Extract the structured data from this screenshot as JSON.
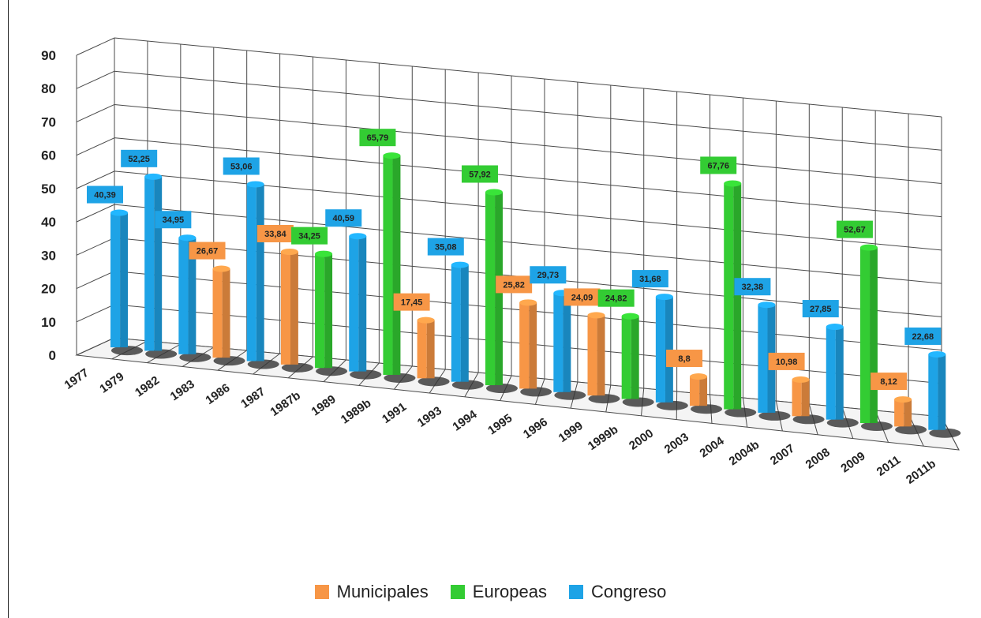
{
  "chart_data": {
    "type": "bar",
    "title": "",
    "xlabel": "",
    "ylabel": "",
    "ylim": [
      0,
      90
    ],
    "yticks": [
      0,
      10,
      20,
      30,
      40,
      50,
      60,
      70,
      80,
      90
    ],
    "grid": true,
    "legend_position": "bottom",
    "categories": [
      "1977",
      "1979",
      "1982",
      "1983",
      "1986",
      "1987",
      "1987b",
      "1989",
      "1989b",
      "1991",
      "1993",
      "1994",
      "1995",
      "1996",
      "1999",
      "1999b",
      "2000",
      "2003",
      "2004",
      "2004b",
      "2007",
      "2008",
      "2009",
      "2011",
      "2011b"
    ],
    "series": [
      {
        "name": "Municipales",
        "color": "#f79646",
        "points": [
          {
            "x": "1983",
            "y": 26.67,
            "label": "26,67"
          },
          {
            "x": "1987",
            "y": 33.84,
            "label": "33,84"
          },
          {
            "x": "1991",
            "y": 17.45,
            "label": "17,45"
          },
          {
            "x": "1995",
            "y": 25.82,
            "label": "25,82"
          },
          {
            "x": "1999",
            "y": 24.09,
            "label": "24,09"
          },
          {
            "x": "2003",
            "y": 8.8,
            "label": "8,8"
          },
          {
            "x": "2007",
            "y": 10.98,
            "label": "10,98"
          },
          {
            "x": "2011",
            "y": 8.12,
            "label": "8,12"
          }
        ]
      },
      {
        "name": "Europeas",
        "color": "#33cc33",
        "points": [
          {
            "x": "1987b",
            "y": 34.25,
            "label": "34,25"
          },
          {
            "x": "1989b",
            "y": 65.79,
            "label": "65,79"
          },
          {
            "x": "1994",
            "y": 57.92,
            "label": "57,92"
          },
          {
            "x": "1999b",
            "y": 24.82,
            "label": "24,82"
          },
          {
            "x": "2004",
            "y": 67.76,
            "label": "67,76"
          },
          {
            "x": "2009",
            "y": 52.67,
            "label": "52,67"
          }
        ]
      },
      {
        "name": "Congreso",
        "color": "#1ea3e6",
        "points": [
          {
            "x": "1977",
            "y": 40.39,
            "label": "40,39"
          },
          {
            "x": "1979",
            "y": 52.25,
            "label": "52,25"
          },
          {
            "x": "1982",
            "y": 34.95,
            "label": "34,95"
          },
          {
            "x": "1986",
            "y": 53.06,
            "label": "53,06"
          },
          {
            "x": "1989",
            "y": 40.59,
            "label": "40,59"
          },
          {
            "x": "1993",
            "y": 35.08,
            "label": "35,08"
          },
          {
            "x": "1996",
            "y": 29.73,
            "label": "29,73"
          },
          {
            "x": "2000",
            "y": 31.68,
            "label": "31,68"
          },
          {
            "x": "2004b",
            "y": 32.38,
            "label": "32,38"
          },
          {
            "x": "2008",
            "y": 27.85,
            "label": "27,85"
          },
          {
            "x": "2011b",
            "y": 22.68,
            "label": "22,68"
          }
        ]
      }
    ]
  },
  "legend": {
    "items": [
      {
        "label": "Municipales",
        "color": "#f79646"
      },
      {
        "label": "Europeas",
        "color": "#33cc33"
      },
      {
        "label": "Congreso",
        "color": "#1ea3e6"
      }
    ]
  }
}
